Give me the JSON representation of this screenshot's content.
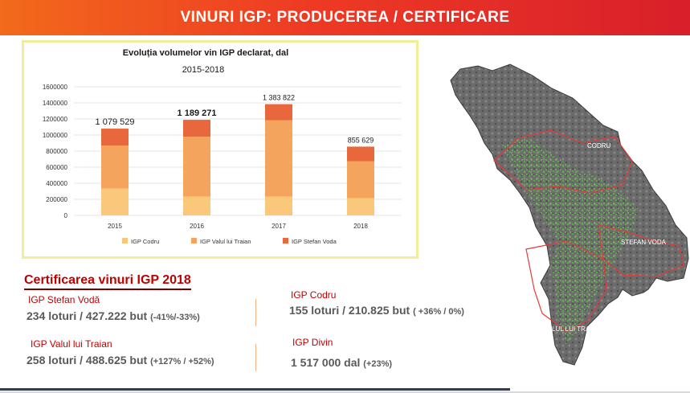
{
  "header": {
    "title": "VINURI IGP: PRODUCEREA / CERTIFICARE"
  },
  "chart_data": {
    "type": "bar",
    "stacked": true,
    "title": "Evoluția volumelor vin IGP declarat, dal",
    "subtitle": "2015-2018",
    "categories": [
      "2015",
      "2016",
      "2017",
      "2018"
    ],
    "series": [
      {
        "name": "IGP Codru",
        "values": [
          335000,
          235000,
          235000,
          215000
        ],
        "color": "#fac87a"
      },
      {
        "name": "IGP Valul lui Traian",
        "values": [
          535000,
          745000,
          950000,
          460000
        ],
        "color": "#f4a45c"
      },
      {
        "name": "IGP Stefan Voda",
        "values": [
          209529,
          209271,
          198822,
          180629
        ],
        "color": "#e9673d"
      }
    ],
    "totals_labels": [
      "1 079 529",
      "1 189 271",
      "1 383 822",
      "855 629"
    ],
    "y_ticks": [
      "0",
      "200000",
      "400000",
      "600000",
      "800000",
      "1000000",
      "1200000",
      "1400000",
      "1600000"
    ],
    "ylim": [
      0,
      1600000
    ],
    "xlabel": "",
    "ylabel": "",
    "grid": true,
    "legend_position": "bottom"
  },
  "certification": {
    "title": "Certificarea vinuri IGP 2018",
    "items": [
      {
        "region": "IGP Stefan Vodă",
        "value": "234 loturi / 427.222 but",
        "change": "(-41%/-33%)"
      },
      {
        "region": "IGP Valul lui Traian",
        "value": "258 loturi / 488.625 but",
        "change": "(+127% / +52%)"
      },
      {
        "region": "IGP Codru",
        "value": "155 loturi / 210.825 but",
        "change": "( +36% / 0%)"
      },
      {
        "region": "IGP Divin",
        "value": "1 517 000 dal",
        "change": "(+23%)"
      }
    ]
  },
  "map": {
    "labels": [
      "CODRU",
      "STEFAN VODA",
      "VALUL LUI TRAIAN"
    ]
  }
}
